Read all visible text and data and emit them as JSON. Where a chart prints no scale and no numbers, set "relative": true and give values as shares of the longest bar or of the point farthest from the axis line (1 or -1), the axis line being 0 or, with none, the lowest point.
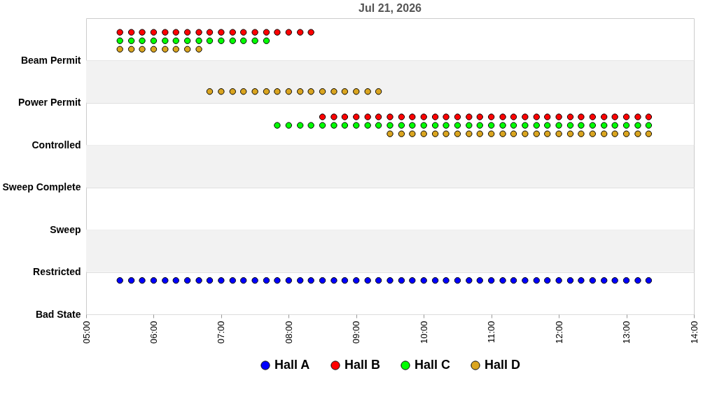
{
  "chart_data": {
    "type": "scatter",
    "title": "Jul 21, 2026",
    "relative": true,
    "x": [
      5.5,
      5.67,
      5.83,
      6,
      6.17,
      6.33,
      6.5,
      6.67,
      6.83,
      7,
      7.17,
      7.33,
      7.5,
      7.67,
      7.83,
      8,
      8.17,
      8.33,
      8.5,
      8.67,
      8.83,
      9,
      9.17,
      9.33,
      9.5,
      9.67,
      9.83,
      10,
      10.17,
      10.33,
      10.5,
      10.67,
      10.83,
      11,
      11.17,
      11.33,
      11.5,
      11.67,
      11.83,
      12,
      12.17,
      12.33,
      12.5,
      12.67,
      12.83,
      13,
      13.17,
      13.33
    ],
    "y_categories": [
      "Beam Permit",
      "Power Permit",
      "Controlled",
      "Sweep Complete",
      "Sweep",
      "Restricted",
      "Bad State"
    ],
    "series": [
      {
        "name": "Hall A",
        "color": "#0000ff",
        "values": [
          0.12,
          0.12,
          0.12,
          0.12,
          0.12,
          0.12,
          0.12,
          0.12,
          0.12,
          0.12,
          0.12,
          0.12,
          0.12,
          0.12,
          0.12,
          0.12,
          0.12,
          0.12,
          0.12,
          0.12,
          0.12,
          0.12,
          0.12,
          0.12,
          0.12,
          0.12,
          0.12,
          0.12,
          0.12,
          0.12,
          0.12,
          0.12,
          0.12,
          0.12,
          0.12,
          0.12,
          0.12,
          0.12,
          0.12,
          0.12,
          0.12,
          0.12,
          0.12,
          0.12,
          0.12,
          0.12,
          0.12,
          0.12
        ]
      },
      {
        "name": "Hall B",
        "color": "#ff0000",
        "values": [
          1,
          1,
          1,
          1,
          1,
          1,
          1,
          1,
          1,
          1,
          1,
          1,
          1,
          1,
          1,
          1,
          1,
          1,
          0.7,
          0.7,
          0.7,
          0.7,
          0.7,
          0.7,
          0.7,
          0.7,
          0.7,
          0.7,
          0.7,
          0.7,
          0.7,
          0.7,
          0.7,
          0.7,
          0.7,
          0.7,
          0.7,
          0.7,
          0.7,
          0.7,
          0.7,
          0.7,
          0.7,
          0.7,
          0.7,
          0.7,
          0.7,
          0.7
        ]
      },
      {
        "name": "Hall C",
        "color": "#00ff00",
        "values": [
          0.97,
          0.97,
          0.97,
          0.97,
          0.97,
          0.97,
          0.97,
          0.97,
          0.97,
          0.97,
          0.97,
          0.97,
          0.97,
          0.97,
          0.67,
          0.67,
          0.67,
          0.67,
          0.67,
          0.67,
          0.67,
          0.67,
          0.67,
          0.67,
          0.67,
          0.67,
          0.67,
          0.67,
          0.67,
          0.67,
          0.67,
          0.67,
          0.67,
          0.67,
          0.67,
          0.67,
          0.67,
          0.67,
          0.67,
          0.67,
          0.67,
          0.67,
          0.67,
          0.67,
          0.67,
          0.67,
          0.67,
          0.67
        ]
      },
      {
        "name": "Hall D",
        "color": "#daa520",
        "values": [
          0.94,
          0.94,
          0.94,
          0.94,
          0.94,
          0.94,
          0.94,
          0.94,
          0.79,
          0.79,
          0.79,
          0.79,
          0.79,
          0.79,
          0.79,
          0.79,
          0.79,
          0.79,
          0.79,
          0.79,
          0.79,
          0.79,
          0.79,
          0.79,
          0.64,
          0.64,
          0.64,
          0.64,
          0.64,
          0.64,
          0.64,
          0.64,
          0.64,
          0.64,
          0.64,
          0.64,
          0.64,
          0.64,
          0.64,
          0.64,
          0.64,
          0.64,
          0.64,
          0.64,
          0.64,
          0.64,
          0.64,
          0.64
        ]
      }
    ],
    "xlim": [
      5,
      14
    ],
    "xticks": [
      {
        "value": 5,
        "label": "05:00"
      },
      {
        "value": 6,
        "label": "06:00"
      },
      {
        "value": 7,
        "label": "07:00"
      },
      {
        "value": 8,
        "label": "08:00"
      },
      {
        "value": 9,
        "label": "09:00"
      },
      {
        "value": 10,
        "label": "10:00"
      },
      {
        "value": 11,
        "label": "11:00"
      },
      {
        "value": 12,
        "label": "12:00"
      },
      {
        "value": 13,
        "label": "13:00"
      },
      {
        "value": 14,
        "label": "14:00"
      }
    ],
    "bands": [
      {
        "axis": "y",
        "from": 0.15,
        "to": 0.3,
        "color": "#f2f2f2"
      },
      {
        "axis": "y",
        "from": 0.45,
        "to": 0.6,
        "color": "#f2f2f2"
      },
      {
        "axis": "y",
        "from": 0.75,
        "to": 0.9,
        "color": "#f2f2f2"
      }
    ],
    "grid": "y",
    "marker": "circle",
    "legend": "bottom"
  }
}
